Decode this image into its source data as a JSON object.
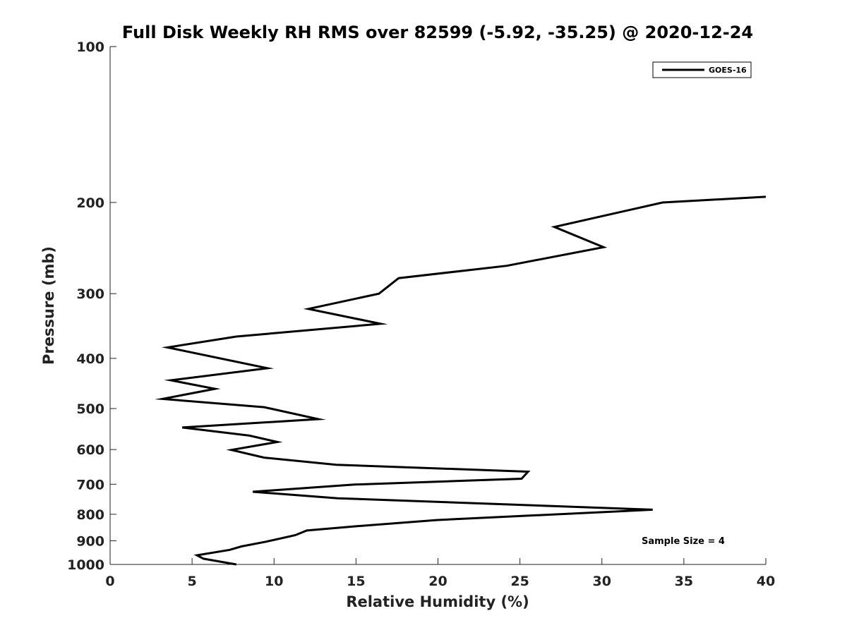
{
  "chart_data": {
    "type": "line",
    "title": "Full Disk Weekly RH RMS over 82599 (-5.92, -35.25) @ 2020-12-24",
    "xlabel": "Relative Humidity (%)",
    "ylabel": "Pressure (mb)",
    "xlim": [
      0,
      40
    ],
    "ylim": [
      100,
      1000
    ],
    "yscale": "log",
    "y_reversed": true,
    "x_ticks": [
      0,
      5,
      10,
      15,
      20,
      25,
      30,
      35,
      40
    ],
    "y_ticks": [
      100,
      200,
      300,
      400,
      500,
      600,
      700,
      800,
      900,
      1000
    ],
    "grid": false,
    "legend_position": "top-right",
    "line_color": "#000000",
    "annotation": "Sample Size = 4",
    "series": [
      {
        "name": "GOES-16",
        "points": [
          [
            40.0,
            195
          ],
          [
            33.7,
            200
          ],
          [
            27.1,
            223
          ],
          [
            30.1,
            244
          ],
          [
            24.2,
            265
          ],
          [
            17.6,
            280
          ],
          [
            16.4,
            300
          ],
          [
            12.1,
            321
          ],
          [
            16.5,
            343
          ],
          [
            7.7,
            363
          ],
          [
            3.5,
            381
          ],
          [
            9.6,
            418
          ],
          [
            3.7,
            441
          ],
          [
            6.4,
            458
          ],
          [
            3.2,
            479
          ],
          [
            9.4,
            497
          ],
          [
            12.7,
            524
          ],
          [
            4.4,
            544
          ],
          [
            8.5,
            564
          ],
          [
            10.2,
            580
          ],
          [
            7.4,
            601
          ],
          [
            9.4,
            622
          ],
          [
            13.8,
            642
          ],
          [
            25.5,
            662
          ],
          [
            25.1,
            683
          ],
          [
            14.9,
            701
          ],
          [
            8.7,
            724
          ],
          [
            13.9,
            745
          ],
          [
            33.1,
            784
          ],
          [
            19.9,
            821
          ],
          [
            15.0,
            844
          ],
          [
            12.0,
            860
          ],
          [
            11.3,
            878
          ],
          [
            9.5,
            904
          ],
          [
            8.0,
            923
          ],
          [
            7.3,
            937
          ],
          [
            5.3,
            960
          ],
          [
            5.7,
            975
          ],
          [
            7.7,
            1000
          ]
        ]
      }
    ]
  }
}
